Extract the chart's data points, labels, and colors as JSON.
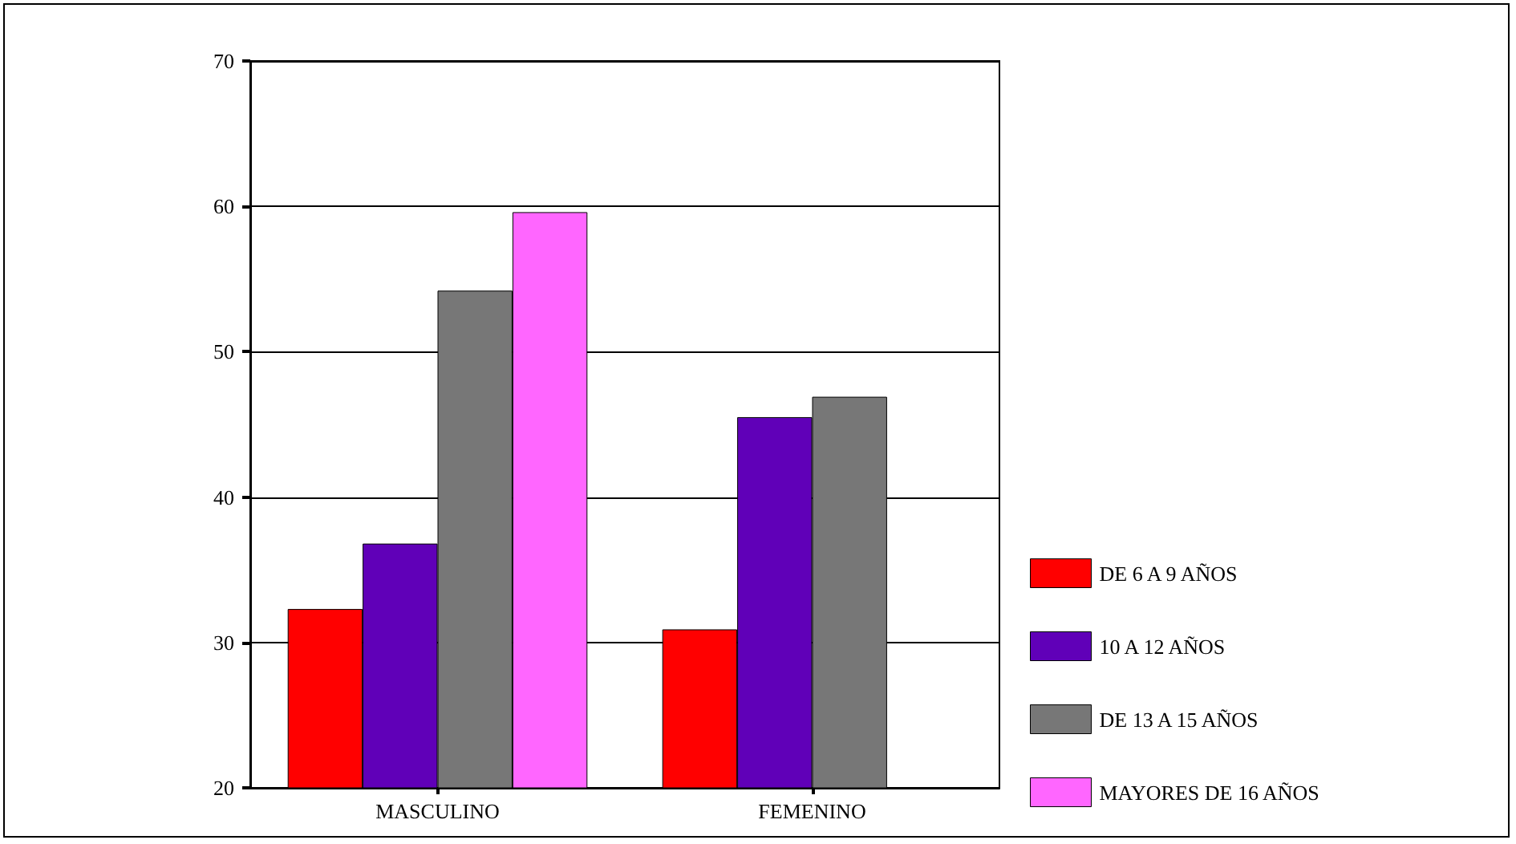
{
  "chart_data": {
    "type": "bar",
    "categories": [
      "MASCULINO",
      "FEMENINO"
    ],
    "series": [
      {
        "name": "DE 6 A 9 AÑOS",
        "color": "#ff0000",
        "values": [
          32.3,
          30.9
        ]
      },
      {
        "name": "10 A 12 AÑOS",
        "color": "#6000b8",
        "values": [
          36.8,
          45.5
        ]
      },
      {
        "name": "DE 13 A 15 AÑOS",
        "color": "#777777",
        "values": [
          54.2,
          46.9
        ]
      },
      {
        "name": "MAYORES DE 16 AÑOS",
        "color": "#ff66ff",
        "values": [
          59.6,
          null
        ]
      }
    ],
    "ylim": [
      20,
      70
    ],
    "yticks": [
      20,
      30,
      40,
      50,
      60,
      70
    ],
    "grid": "y",
    "legend": "right"
  }
}
